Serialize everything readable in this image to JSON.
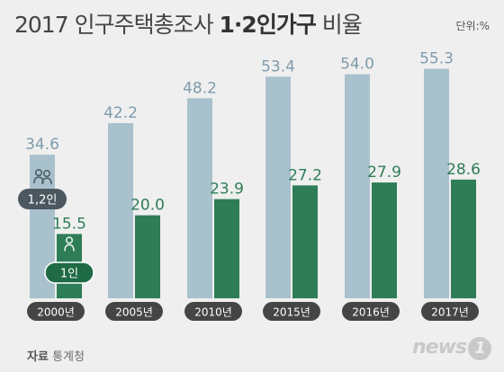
{
  "title": {
    "year": "2017 인구주택총조사",
    "highlight": "1·2인가구",
    "suffix": "비율"
  },
  "unit": "단위:%",
  "source": {
    "label": "자료",
    "name": "통계청"
  },
  "logo": {
    "text": "news",
    "mark": "1"
  },
  "legend": {
    "group_12": "1,2인",
    "group_1": "1인"
  },
  "colors": {
    "bar_12": "#a9c1cd",
    "bar_1": "#2e7d57",
    "label_12": "#7e9bab",
    "label_1": "#2e7d57",
    "year_badge": "#454545",
    "background": "#efefef"
  },
  "chart_data": {
    "type": "bar",
    "categories": [
      "2000년",
      "2005년",
      "2010년",
      "2015년",
      "2016년",
      "2017년"
    ],
    "series": [
      {
        "name": "1,2인",
        "values": [
          34.6,
          42.2,
          48.2,
          53.4,
          54.0,
          55.3
        ]
      },
      {
        "name": "1인",
        "values": [
          15.5,
          20.0,
          23.9,
          27.2,
          27.9,
          28.6
        ]
      }
    ],
    "title": "2017 인구주택총조사 1·2인가구 비율",
    "xlabel": "",
    "ylabel": "",
    "ylim": [
      0,
      60
    ]
  }
}
